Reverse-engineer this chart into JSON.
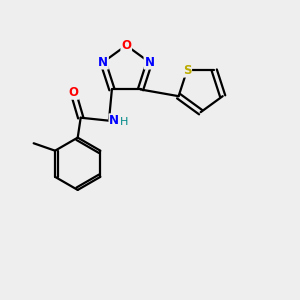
{
  "background_color": "#eeeeee",
  "bond_color": "#000000",
  "atom_colors": {
    "N": "#0000ff",
    "O": "#ff0000",
    "S": "#bbaa00",
    "H": "#008888",
    "C": "#000000"
  },
  "figsize": [
    3.0,
    3.0
  ],
  "dpi": 100
}
